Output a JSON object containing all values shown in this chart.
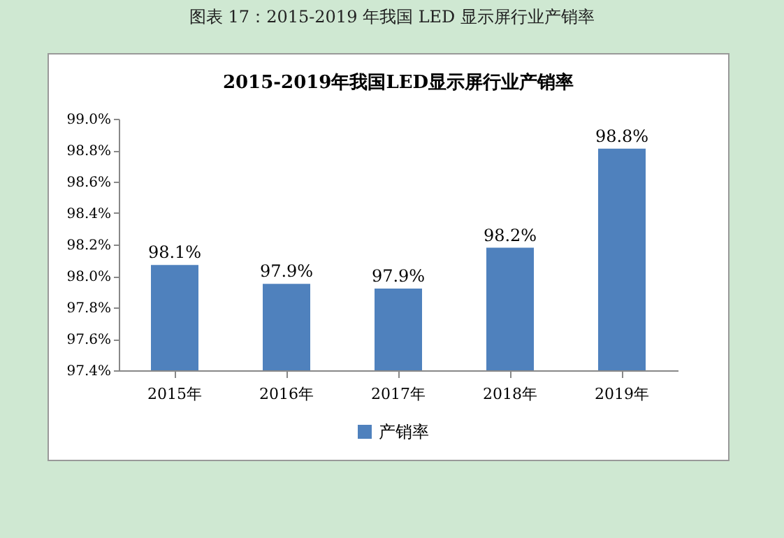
{
  "chart_data": {
    "type": "bar",
    "title": "图表 17：2015-2019 年我国 LED 显示屏行业产销率",
    "subtitle": "2015-2019年我国LED显示屏行业产销率",
    "categories": [
      "2015年",
      "2016年",
      "2017年",
      "2018年",
      "2019年"
    ],
    "series": [
      {
        "name": "产销率",
        "color": "#4f81bd",
        "values": [
          98.07,
          97.95,
          97.92,
          98.18,
          98.81
        ],
        "value_labels": [
          "98.1%",
          "97.9%",
          "97.9%",
          "98.2%",
          "98.8%"
        ]
      }
    ],
    "ylim": [
      97.4,
      99.0
    ],
    "yticks": [
      {
        "value": 97.4,
        "label": "97.4%"
      },
      {
        "value": 97.6,
        "label": "97.6%"
      },
      {
        "value": 97.8,
        "label": "97.8%"
      },
      {
        "value": 98.0,
        "label": "98.0%"
      },
      {
        "value": 98.2,
        "label": "98.2%"
      },
      {
        "value": 98.4,
        "label": "98.4%"
      },
      {
        "value": 98.6,
        "label": "98.6%"
      },
      {
        "value": 98.8,
        "label": "98.8%"
      },
      {
        "value": 99.0,
        "label": "99.0%"
      }
    ],
    "legend": "bottom",
    "grid": false
  }
}
